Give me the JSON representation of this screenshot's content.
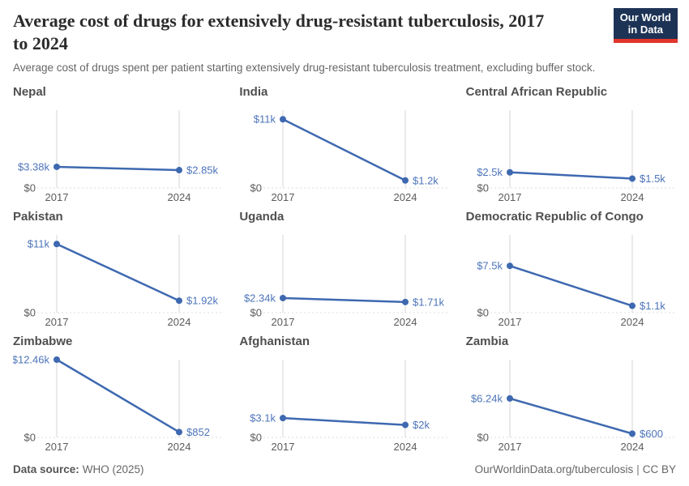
{
  "header": {
    "title_line1": "Average cost of drugs for extensively drug-resistant tuberculosis, 2017",
    "title_line2": "to 2024",
    "subtitle": "Average cost of drugs spent per patient starting extensively drug-resistant tuberculosis treatment, excluding buffer stock.",
    "logo_line1": "Our World",
    "logo_line2": "in Data"
  },
  "footer": {
    "source_label": "Data source:",
    "source_value": "WHO (2025)",
    "link_text": "OurWorldinData.org/tuberculosis",
    "separator": "|",
    "license_text": "CC BY"
  },
  "colors": {
    "line": "#3e69b0",
    "value_label": "#4d74b8",
    "gridline": "#d4d4d4",
    "baseline": "#dcdcdc",
    "axis_text": "#5b5b5b"
  },
  "chart_axis": {
    "ymin_label": "$0",
    "x_ticks": [
      "2017",
      "2024"
    ],
    "ylim": [
      0,
      12460
    ],
    "grid": "vertical-gridlines-plus-dotted-zero-line",
    "legend": "none"
  },
  "chart_data": [
    {
      "type": "line",
      "title": "Nepal",
      "x": [
        2017,
        2024
      ],
      "values": [
        3380,
        2850
      ],
      "point_labels": [
        "$3.38k",
        "$2.85k"
      ]
    },
    {
      "type": "line",
      "title": "India",
      "x": [
        2017,
        2024
      ],
      "values": [
        11000,
        1200
      ],
      "point_labels": [
        "$11k",
        "$1.2k"
      ]
    },
    {
      "type": "line",
      "title": "Central African Republic",
      "x": [
        2017,
        2024
      ],
      "values": [
        2500,
        1500
      ],
      "point_labels": [
        "$2.5k",
        "$1.5k"
      ]
    },
    {
      "type": "line",
      "title": "Pakistan",
      "x": [
        2017,
        2024
      ],
      "values": [
        11000,
        1920
      ],
      "point_labels": [
        "$11k",
        "$1.92k"
      ]
    },
    {
      "type": "line",
      "title": "Uganda",
      "x": [
        2017,
        2024
      ],
      "values": [
        2340,
        1710
      ],
      "point_labels": [
        "$2.34k",
        "$1.71k"
      ]
    },
    {
      "type": "line",
      "title": "Democratic Republic of Congo",
      "x": [
        2017,
        2024
      ],
      "values": [
        7500,
        1100
      ],
      "point_labels": [
        "$7.5k",
        "$1.1k"
      ]
    },
    {
      "type": "line",
      "title": "Zimbabwe",
      "x": [
        2017,
        2024
      ],
      "values": [
        12460,
        852
      ],
      "point_labels": [
        "$12.46k",
        "$852"
      ]
    },
    {
      "type": "line",
      "title": "Afghanistan",
      "x": [
        2017,
        2024
      ],
      "values": [
        3100,
        2000
      ],
      "point_labels": [
        "$3.1k",
        "$2k"
      ]
    },
    {
      "type": "line",
      "title": "Zambia",
      "x": [
        2017,
        2024
      ],
      "values": [
        6240,
        600
      ],
      "point_labels": [
        "$6.24k",
        "$600"
      ]
    }
  ]
}
